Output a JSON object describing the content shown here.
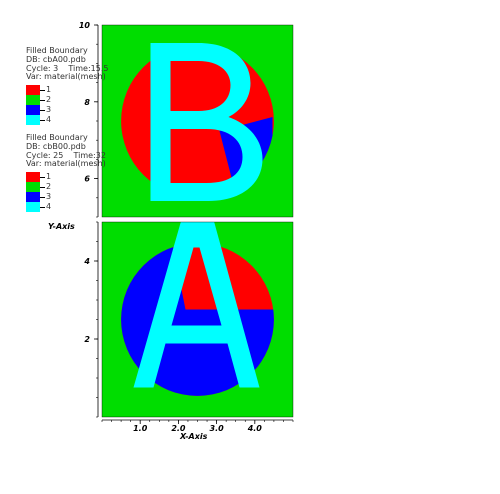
{
  "chart_data": {
    "type": "heatmap",
    "xlabel": "X-Axis",
    "ylabel": "Y-Axis",
    "x_ticks": [
      "1.0",
      "2.0",
      "3.0",
      "4.0"
    ],
    "x_tick_values": [
      1,
      2,
      3,
      4
    ],
    "xlim": [
      0,
      5
    ],
    "colors": {
      "1": "#ff0000",
      "2": "#00dd00",
      "3": "#0000ff",
      "4": "#00ffff"
    },
    "panels": [
      {
        "id": "top",
        "letter": "B",
        "ylim": [
          5,
          10
        ],
        "y_ticks": [
          "6",
          "8",
          "10"
        ],
        "y_tick_values": [
          6,
          8,
          10
        ],
        "circle": {
          "cx": 2.5,
          "cy": 7.5,
          "r": 2.0
        },
        "legend": {
          "title": "Filled Boundary",
          "db": "DB: cbA00.pdb",
          "cycle_label": "Cycle: 3",
          "time_label": "Time:15.5",
          "var": "Var: material(mesh)",
          "items": [
            "1",
            "2",
            "3",
            "4"
          ]
        }
      },
      {
        "id": "bottom",
        "letter": "A",
        "ylim": [
          0,
          5
        ],
        "y_ticks": [
          "2",
          "4"
        ],
        "y_tick_values": [
          2,
          4
        ],
        "circle": {
          "cx": 2.5,
          "cy": 2.5,
          "r": 2.0
        },
        "legend": {
          "title": "Filled Boundary",
          "db": "DB: cbB00.pdb",
          "cycle_label": "Cycle: 25",
          "time_label": "Time:32",
          "var": "Var: material(mesh)",
          "items": [
            "1",
            "2",
            "3",
            "4"
          ]
        }
      }
    ]
  }
}
